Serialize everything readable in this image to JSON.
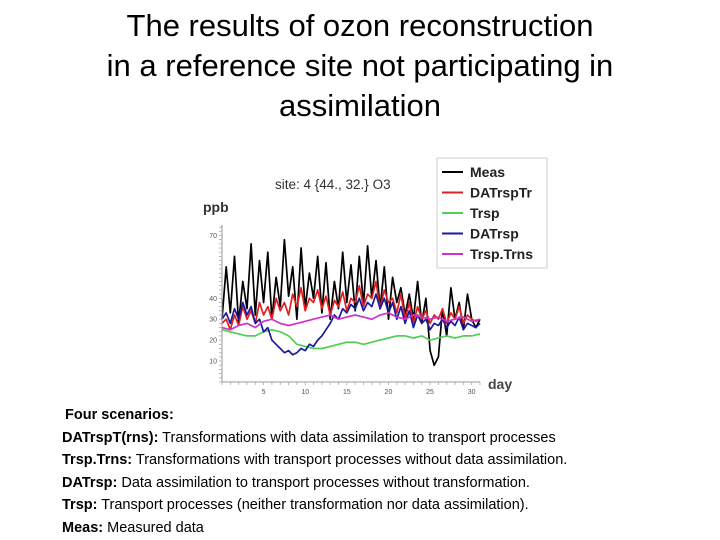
{
  "title_lines": [
    "The results of ozon reconstruction",
    "in a reference site not participating in",
    "assimilation"
  ],
  "chart_data": {
    "type": "line",
    "title": "site: 4 {44., 32.} O3",
    "ylabel": "ppb",
    "xlabel": "day",
    "xlim": [
      0,
      31
    ],
    "ylim": [
      0,
      75
    ],
    "x_ticks": [
      5,
      10,
      15,
      20,
      25,
      30
    ],
    "y_ticks": [
      10,
      20,
      30,
      40,
      70
    ],
    "grid": false,
    "legend_position": "top-right",
    "series": [
      {
        "name": "Meas",
        "color": "#000000",
        "x": [
          0,
          0.5,
          1,
          1.5,
          2,
          2.5,
          3,
          3.5,
          4,
          4.5,
          5,
          5.5,
          6,
          6.5,
          7,
          7.5,
          8,
          8.5,
          9,
          9.5,
          10,
          10.5,
          11,
          11.5,
          12,
          12.5,
          13,
          13.5,
          14,
          14.5,
          15,
          15.5,
          16,
          16.5,
          17,
          17.5,
          18,
          18.5,
          19,
          19.5,
          20,
          20.5,
          21,
          21.5,
          22,
          22.5,
          23,
          23.5,
          24,
          24.5,
          25,
          25.5,
          26,
          26.5,
          27,
          27.5,
          28,
          28.5,
          29,
          29.5,
          30,
          30.5,
          31
        ],
        "values": [
          30,
          55,
          33,
          60,
          28,
          48,
          35,
          66,
          32,
          58,
          38,
          62,
          30,
          50,
          36,
          68,
          41,
          55,
          30,
          64,
          35,
          52,
          40,
          60,
          33,
          57,
          30,
          48,
          35,
          62,
          38,
          56,
          34,
          60,
          37,
          65,
          40,
          58,
          35,
          55,
          30,
          50,
          38,
          45,
          32,
          42,
          30,
          48,
          28,
          40,
          15,
          8,
          12,
          35,
          22,
          45,
          30,
          38,
          25,
          42,
          30,
          26,
          30
        ]
      },
      {
        "name": "DATrspTr",
        "color": "#e02020",
        "x": [
          0,
          0.5,
          1,
          1.5,
          2,
          2.5,
          3,
          3.5,
          4,
          4.5,
          5,
          5.5,
          6,
          6.5,
          7,
          7.5,
          8,
          8.5,
          9,
          9.5,
          10,
          10.5,
          11,
          11.5,
          12,
          12.5,
          13,
          13.5,
          14,
          14.5,
          15,
          15.5,
          16,
          16.5,
          17,
          17.5,
          18,
          18.5,
          19,
          19.5,
          20,
          20.5,
          21,
          21.5,
          22,
          22.5,
          23,
          23.5,
          24,
          24.5,
          25,
          25.5,
          26,
          26.5,
          27,
          27.5,
          28,
          28.5,
          29,
          29.5,
          30,
          30.5,
          31
        ],
        "values": [
          28,
          30,
          25,
          32,
          27,
          36,
          30,
          34,
          28,
          38,
          32,
          36,
          30,
          40,
          34,
          38,
          32,
          42,
          36,
          45,
          34,
          40,
          38,
          44,
          35,
          41,
          32,
          39,
          36,
          43,
          34,
          40,
          38,
          46,
          36,
          42,
          40,
          48,
          35,
          44,
          38,
          40,
          33,
          42,
          30,
          38,
          28,
          36,
          30,
          34,
          28,
          32,
          30,
          35,
          28,
          33,
          30,
          36,
          28,
          32,
          30,
          29,
          30
        ]
      },
      {
        "name": "Trsp",
        "color": "#55cc55",
        "x": [
          0,
          1,
          2,
          3,
          4,
          5,
          6,
          7,
          8,
          9,
          10,
          11,
          12,
          13,
          14,
          15,
          16,
          17,
          18,
          19,
          20,
          21,
          22,
          23,
          24,
          25,
          26,
          27,
          28,
          29,
          30,
          31
        ],
        "values": [
          25,
          24,
          23,
          22,
          22,
          24,
          25,
          24,
          22,
          18,
          17,
          16,
          16,
          17,
          18,
          19,
          19,
          18,
          19,
          20,
          21,
          22,
          22,
          21,
          22,
          20,
          21,
          22,
          21,
          22,
          22,
          23
        ]
      },
      {
        "name": "DATrsp",
        "color": "#1a1aa0",
        "x": [
          0,
          0.5,
          1,
          1.5,
          2,
          2.5,
          3,
          3.5,
          4,
          4.5,
          5,
          5.5,
          6,
          6.5,
          7,
          7.5,
          8,
          8.5,
          9,
          9.5,
          10,
          10.5,
          11,
          11.5,
          12,
          12.5,
          13,
          13.5,
          14,
          14.5,
          15,
          15.5,
          16,
          16.5,
          17,
          17.5,
          18,
          18.5,
          19,
          19.5,
          20,
          20.5,
          21,
          21.5,
          22,
          22.5,
          23,
          23.5,
          24,
          24.5,
          25,
          25.5,
          26,
          26.5,
          27,
          27.5,
          28,
          28.5,
          29,
          29.5,
          30,
          30.5,
          31
        ],
        "values": [
          30,
          33,
          28,
          35,
          30,
          38,
          32,
          36,
          28,
          30,
          24,
          26,
          20,
          18,
          16,
          14,
          15,
          13,
          14,
          16,
          15,
          18,
          17,
          20,
          22,
          25,
          28,
          32,
          30,
          35,
          33,
          37,
          35,
          40,
          34,
          38,
          36,
          42,
          35,
          40,
          33,
          38,
          30,
          36,
          28,
          34,
          26,
          32,
          28,
          30,
          25,
          28,
          27,
          30,
          26,
          29,
          27,
          31,
          25,
          28,
          27,
          26,
          28
        ]
      },
      {
        "name": "Trsp.Trns",
        "color": "#cc33cc",
        "x": [
          0,
          1,
          2,
          3,
          4,
          5,
          6,
          7,
          8,
          9,
          10,
          11,
          12,
          13,
          14,
          15,
          16,
          17,
          18,
          19,
          20,
          21,
          22,
          23,
          24,
          25,
          26,
          27,
          28,
          29,
          30,
          31
        ],
        "values": [
          26,
          25,
          27,
          28,
          26,
          29,
          30,
          28,
          27,
          28,
          29,
          30,
          31,
          32,
          30,
          31,
          32,
          31,
          30,
          32,
          33,
          31,
          30,
          32,
          31,
          30,
          31,
          29,
          30,
          31,
          29,
          30
        ]
      }
    ]
  },
  "description": {
    "heading": "Four scenarios:",
    "items": [
      {
        "term": "DATrspT(rns):",
        "text": " Transformations with data assimilation to transport processes"
      },
      {
        "term": "Trsp.Trns:",
        "text": " Transformations with transport processes without data assimilation."
      },
      {
        "term": "DATrsp:",
        "text": " Data assimilation to transport processes without transformation."
      },
      {
        "term": "Trsp:",
        "text": " Transport processes (neither transformation nor data assimilation)."
      },
      {
        "term": "Meas:",
        "text": " Measured data"
      }
    ]
  }
}
